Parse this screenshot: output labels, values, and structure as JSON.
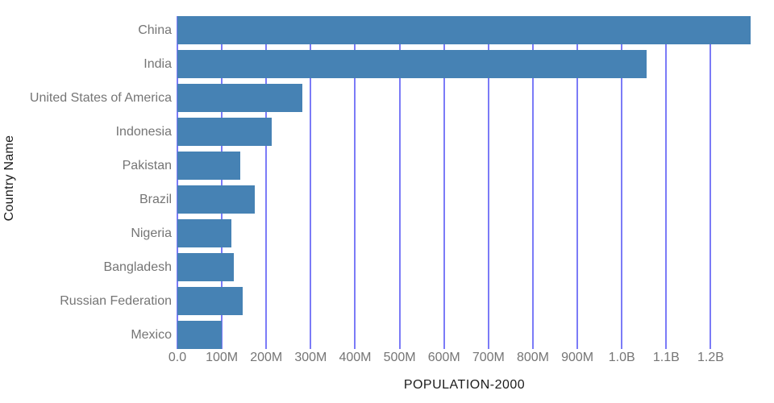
{
  "chart_data": {
    "type": "bar",
    "orientation": "horizontal",
    "title": "",
    "xlabel": "POPULATION-2000",
    "ylabel": "Country Name",
    "categories": [
      "China",
      "India",
      "United States of America",
      "Indonesia",
      "Pakistan",
      "Brazil",
      "Nigeria",
      "Bangladesh",
      "Russian Federation",
      "Mexico"
    ],
    "values": [
      1290550765,
      1056575549,
      281710909,
      211513823,
      142343578,
      174790340,
      122283850,
      127657854,
      146596869,
      98899845
    ],
    "xlim": [
      0,
      1290550765
    ],
    "x_tick_values": [
      0,
      100000000,
      200000000,
      300000000,
      400000000,
      500000000,
      600000000,
      700000000,
      800000000,
      900000000,
      1000000000,
      1100000000,
      1200000000
    ],
    "x_tick_labels": [
      "0.0",
      "100M",
      "200M",
      "300M",
      "400M",
      "500M",
      "600M",
      "700M",
      "800M",
      "900M",
      "1.0B",
      "1.1B",
      "1.2B"
    ],
    "grid": "vertical",
    "legend": false
  },
  "colors": {
    "bar": "#4682B4",
    "gridline": "#7B7BF7",
    "tick_label": "#757575",
    "axis_title": "#1C1C1C",
    "background": "#FFFFFF"
  }
}
